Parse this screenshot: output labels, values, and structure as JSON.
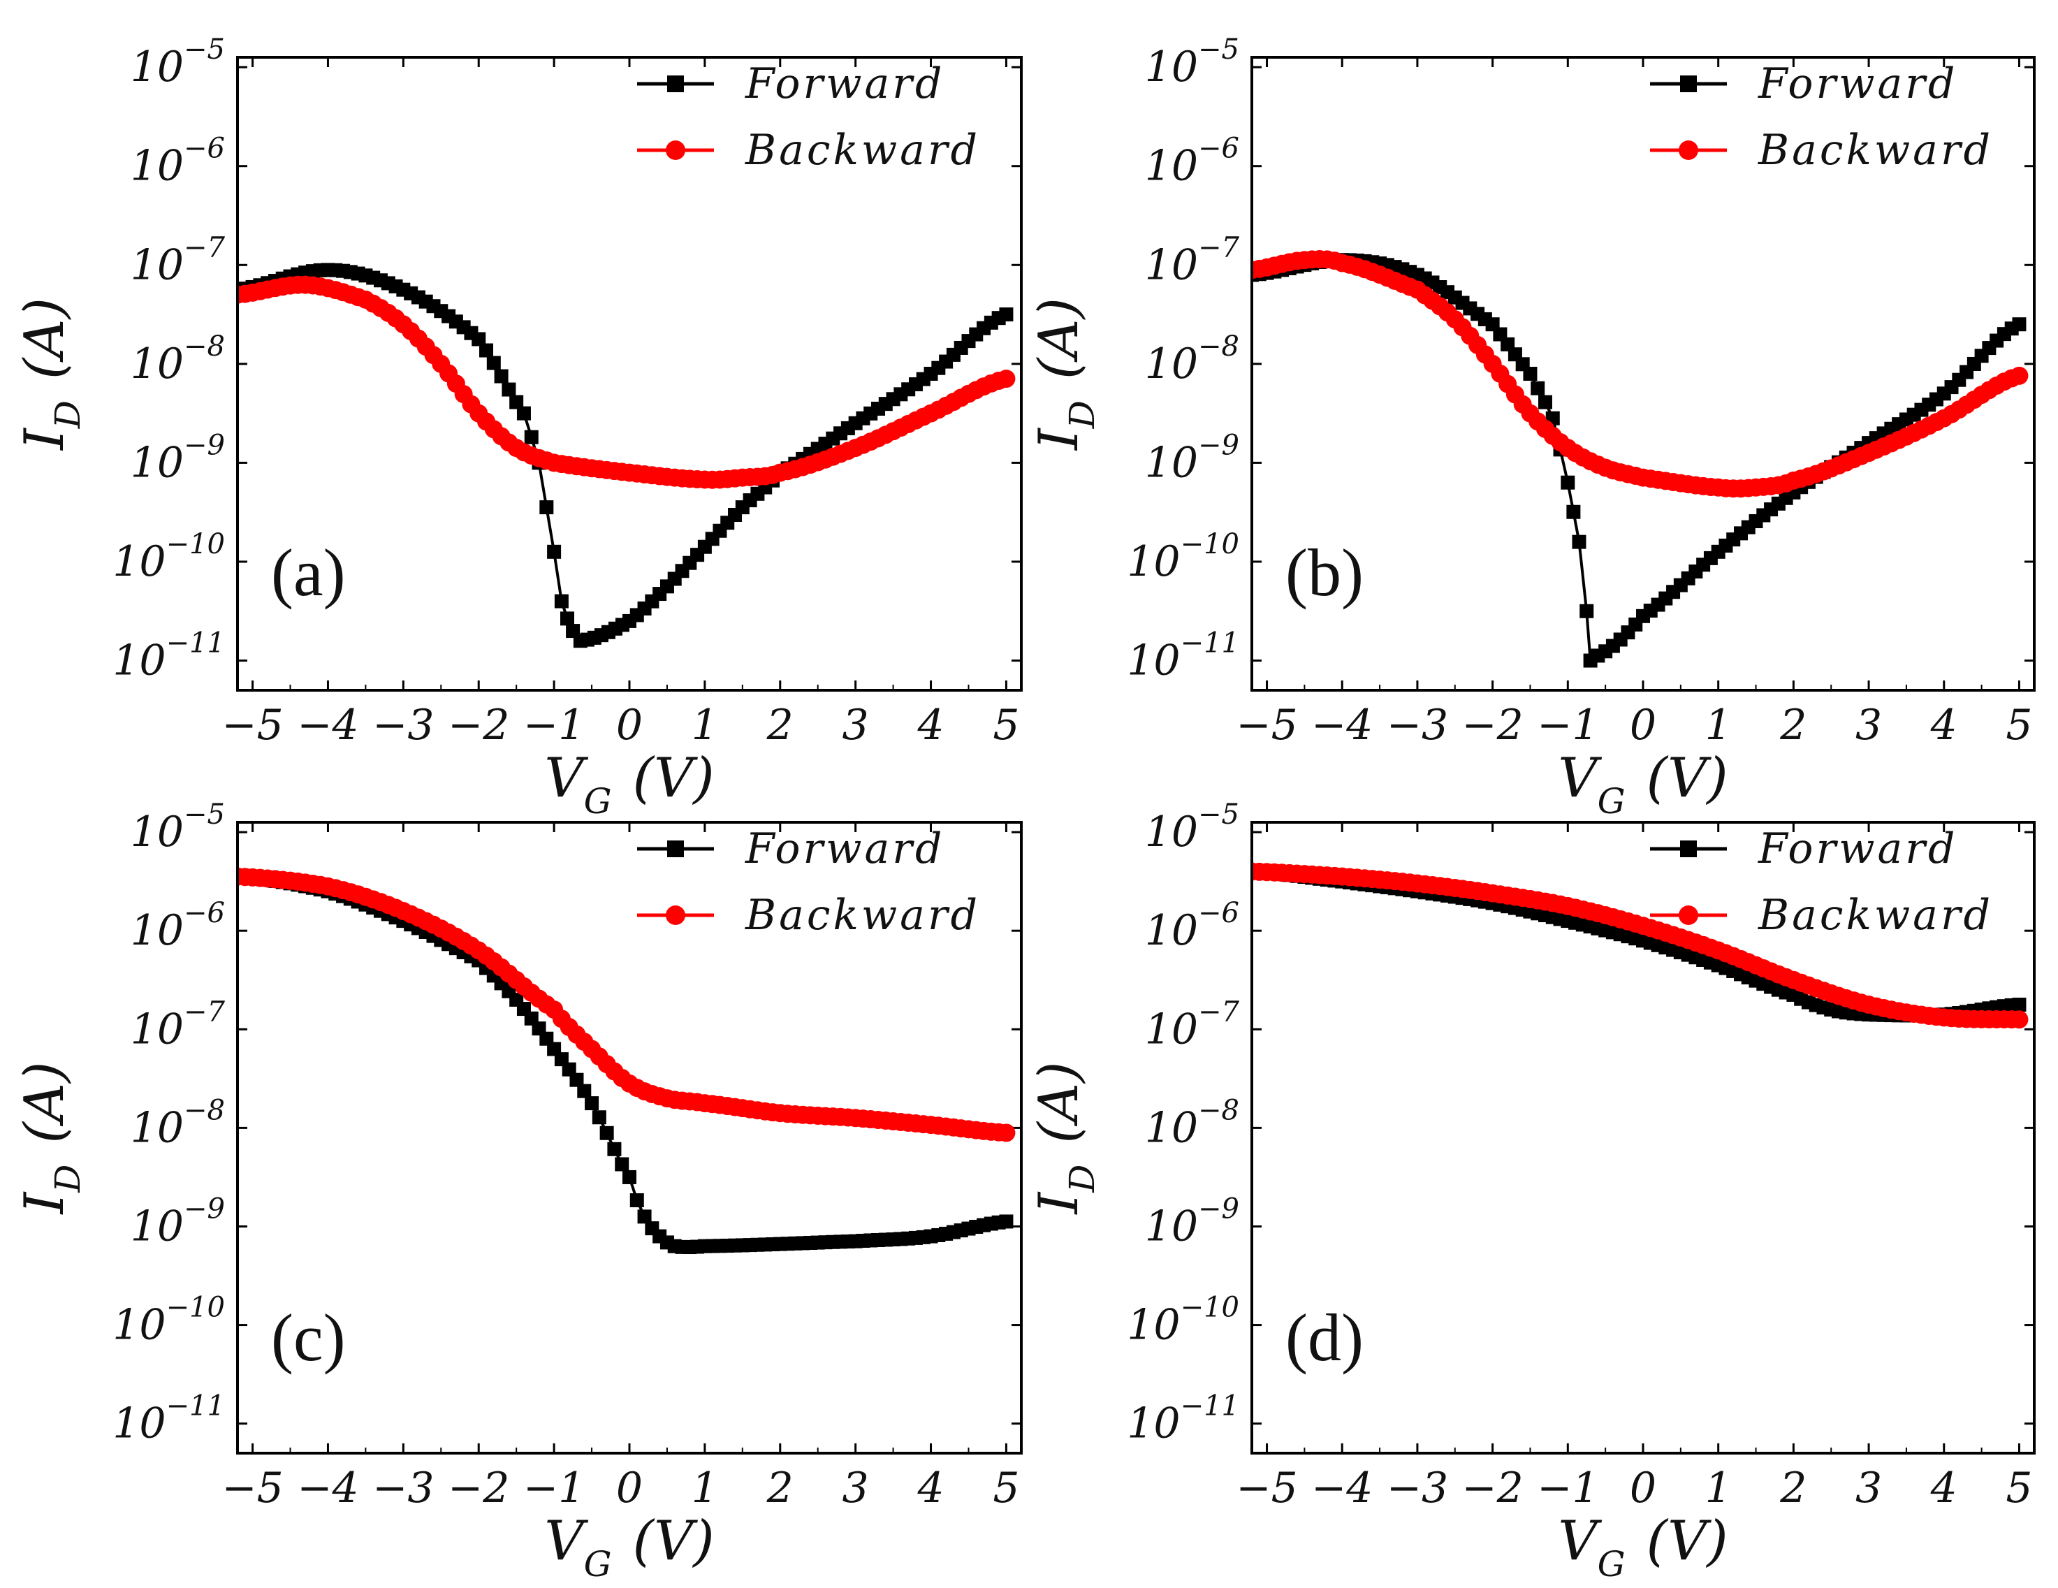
{
  "chart_data": [
    {
      "type": "line",
      "panel_label": "(a)",
      "xlabel": "V",
      "xlabel_sub": "G",
      "xlabel_unit": "(V)",
      "ylabel": "I",
      "ylabel_sub": "D",
      "ylabel_unit": "(A)",
      "xlim": [
        -5.2,
        5.2
      ],
      "ylim_log10": [
        -11.3,
        -4.9
      ],
      "x_ticks": [
        "−5",
        "−4",
        "−3",
        "−2",
        "−1",
        "0",
        "1",
        "2",
        "3",
        "4",
        "5"
      ],
      "y_ticks": [
        {
          "base": "10",
          "exp": "−5"
        },
        {
          "base": "10",
          "exp": "−6"
        },
        {
          "base": "10",
          "exp": "−7"
        },
        {
          "base": "10",
          "exp": "−8"
        },
        {
          "base": "10",
          "exp": "−9"
        },
        {
          "base": "10",
          "exp": "−10"
        },
        {
          "base": "10",
          "exp": "−11"
        }
      ],
      "legend": {
        "position": "top-right"
      },
      "series": [
        {
          "name": "Forward",
          "color": "#000000",
          "marker": "square",
          "x": [
            -5.2,
            -4.0,
            -3.0,
            -2.0,
            -1.4,
            -1.2,
            -1.0,
            -0.9,
            -0.75,
            -0.65,
            0.0,
            0.5,
            1.0,
            1.5,
            2.0,
            3.0,
            4.0,
            5.0
          ],
          "log10": [
            -7.25,
            -7.05,
            -7.25,
            -7.75,
            -8.5,
            -9.0,
            -9.9,
            -10.4,
            -10.7,
            -10.8,
            -10.6,
            -10.25,
            -9.85,
            -9.45,
            -9.1,
            -8.6,
            -8.1,
            -7.5
          ]
        },
        {
          "name": "Backward",
          "color": "#ff0000",
          "marker": "circle",
          "x": [
            -5.2,
            -4.3,
            -3.5,
            -3.0,
            -2.5,
            -2.0,
            -1.5,
            -1.0,
            0.0,
            1.0,
            1.5,
            2.0,
            3.0,
            4.0,
            5.0
          ],
          "log10": [
            -7.3,
            -7.2,
            -7.35,
            -7.6,
            -8.0,
            -8.5,
            -8.85,
            -9.0,
            -9.1,
            -9.17,
            -9.15,
            -9.1,
            -8.85,
            -8.5,
            -8.15
          ]
        }
      ]
    },
    {
      "type": "line",
      "panel_label": "(b)",
      "xlabel": "V",
      "xlabel_sub": "G",
      "xlabel_unit": "(V)",
      "ylabel": "I",
      "ylabel_sub": "D",
      "ylabel_unit": "(A)",
      "xlim": [
        -5.2,
        5.2
      ],
      "ylim_log10": [
        -11.3,
        -4.9
      ],
      "x_ticks": [
        "−5",
        "−4",
        "−3",
        "−2",
        "−1",
        "0",
        "1",
        "2",
        "3",
        "4",
        "5"
      ],
      "y_ticks": [
        {
          "base": "10",
          "exp": "−5"
        },
        {
          "base": "10",
          "exp": "−6"
        },
        {
          "base": "10",
          "exp": "−7"
        },
        {
          "base": "10",
          "exp": "−8"
        },
        {
          "base": "10",
          "exp": "−9"
        },
        {
          "base": "10",
          "exp": "−10"
        },
        {
          "base": "10",
          "exp": "−11"
        }
      ],
      "legend": {
        "position": "top-right"
      },
      "series": [
        {
          "name": "Forward",
          "color": "#000000",
          "marker": "square",
          "x": [
            -5.2,
            -4.0,
            -3.0,
            -2.0,
            -1.5,
            -1.2,
            -1.0,
            -0.85,
            -0.75,
            -0.7,
            -0.6,
            0.0,
            1.0,
            2.0,
            3.0,
            4.0,
            5.0
          ],
          "log10": [
            -7.1,
            -6.95,
            -7.1,
            -7.6,
            -8.1,
            -8.55,
            -9.2,
            -9.8,
            -10.5,
            -11.0,
            -10.95,
            -10.55,
            -9.9,
            -9.3,
            -8.8,
            -8.3,
            -7.6
          ]
        },
        {
          "name": "Backward",
          "color": "#ff0000",
          "marker": "circle",
          "x": [
            -5.2,
            -4.5,
            -4.0,
            -3.0,
            -2.5,
            -2.0,
            -1.5,
            -1.0,
            -0.5,
            0.0,
            1.0,
            1.5,
            2.0,
            3.0,
            4.0,
            5.0
          ],
          "log10": [
            -7.05,
            -6.95,
            -6.98,
            -7.25,
            -7.55,
            -8.0,
            -8.5,
            -8.85,
            -9.05,
            -9.15,
            -9.25,
            -9.25,
            -9.18,
            -8.9,
            -8.55,
            -8.12
          ]
        }
      ]
    },
    {
      "type": "line",
      "panel_label": "(c)",
      "xlabel": "V",
      "xlabel_sub": "G",
      "xlabel_unit": "(V)",
      "ylabel": "I",
      "ylabel_sub": "D",
      "ylabel_unit": "(A)",
      "xlim": [
        -5.2,
        5.2
      ],
      "ylim_log10": [
        -11.3,
        -4.9
      ],
      "x_ticks": [
        "−5",
        "−4",
        "−3",
        "−2",
        "−1",
        "0",
        "1",
        "2",
        "3",
        "4",
        "5"
      ],
      "y_ticks": [
        {
          "base": "10",
          "exp": "−5"
        },
        {
          "base": "10",
          "exp": "−6"
        },
        {
          "base": "10",
          "exp": "−7"
        },
        {
          "base": "10",
          "exp": "−8"
        },
        {
          "base": "10",
          "exp": "−9"
        },
        {
          "base": "10",
          "exp": "−10"
        },
        {
          "base": "10",
          "exp": "−11"
        }
      ],
      "legend": {
        "position": "top-right"
      },
      "series": [
        {
          "name": "Forward",
          "color": "#000000",
          "marker": "square",
          "x": [
            -5.2,
            -4.0,
            -3.0,
            -2.0,
            -1.5,
            -1.0,
            -0.5,
            0.0,
            0.2,
            0.4,
            0.6,
            1.0,
            3.0,
            4.0,
            5.0
          ],
          "log10": [
            -5.45,
            -5.6,
            -5.9,
            -6.3,
            -6.7,
            -7.2,
            -7.75,
            -8.5,
            -8.9,
            -9.1,
            -9.2,
            -9.2,
            -9.15,
            -9.1,
            -8.95
          ]
        },
        {
          "name": "Backward",
          "color": "#ff0000",
          "marker": "circle",
          "x": [
            -5.2,
            -4.0,
            -3.0,
            -2.0,
            -1.0,
            -0.5,
            0.0,
            0.5,
            1.0,
            2.0,
            3.0,
            4.0,
            5.0
          ],
          "log10": [
            -5.45,
            -5.55,
            -5.8,
            -6.2,
            -6.8,
            -7.2,
            -7.55,
            -7.7,
            -7.75,
            -7.85,
            -7.9,
            -7.97,
            -8.05
          ]
        }
      ]
    },
    {
      "type": "line",
      "panel_label": "(d)",
      "xlabel": "V",
      "xlabel_sub": "G",
      "xlabel_unit": "(V)",
      "ylabel": "I",
      "ylabel_sub": "D",
      "ylabel_unit": "(A)",
      "xlim": [
        -5.2,
        5.2
      ],
      "ylim_log10": [
        -11.3,
        -4.9
      ],
      "x_ticks": [
        "−5",
        "−4",
        "−3",
        "−2",
        "−1",
        "0",
        "1",
        "2",
        "3",
        "4",
        "5"
      ],
      "y_ticks": [
        {
          "base": "10",
          "exp": "−5"
        },
        {
          "base": "10",
          "exp": "−6"
        },
        {
          "base": "10",
          "exp": "−7"
        },
        {
          "base": "10",
          "exp": "−8"
        },
        {
          "base": "10",
          "exp": "−9"
        },
        {
          "base": "10",
          "exp": "−10"
        },
        {
          "base": "10",
          "exp": "−11"
        }
      ],
      "legend": {
        "position": "top-right"
      },
      "series": [
        {
          "name": "Forward",
          "color": "#000000",
          "marker": "square",
          "x": [
            -5.2,
            -4.0,
            -3.0,
            -2.0,
            -1.0,
            0.0,
            1.0,
            2.0,
            2.5,
            3.0,
            4.0,
            5.0
          ],
          "log10": [
            -5.4,
            -5.5,
            -5.6,
            -5.72,
            -5.9,
            -6.1,
            -6.35,
            -6.65,
            -6.8,
            -6.85,
            -6.85,
            -6.75
          ]
        },
        {
          "name": "Backward",
          "color": "#ff0000",
          "marker": "circle",
          "x": [
            -5.2,
            -4.0,
            -3.0,
            -2.0,
            -1.0,
            0.0,
            1.0,
            2.0,
            3.0,
            4.0,
            5.0
          ],
          "log10": [
            -5.4,
            -5.45,
            -5.52,
            -5.62,
            -5.75,
            -5.95,
            -6.2,
            -6.5,
            -6.75,
            -6.88,
            -6.9
          ]
        }
      ]
    }
  ]
}
